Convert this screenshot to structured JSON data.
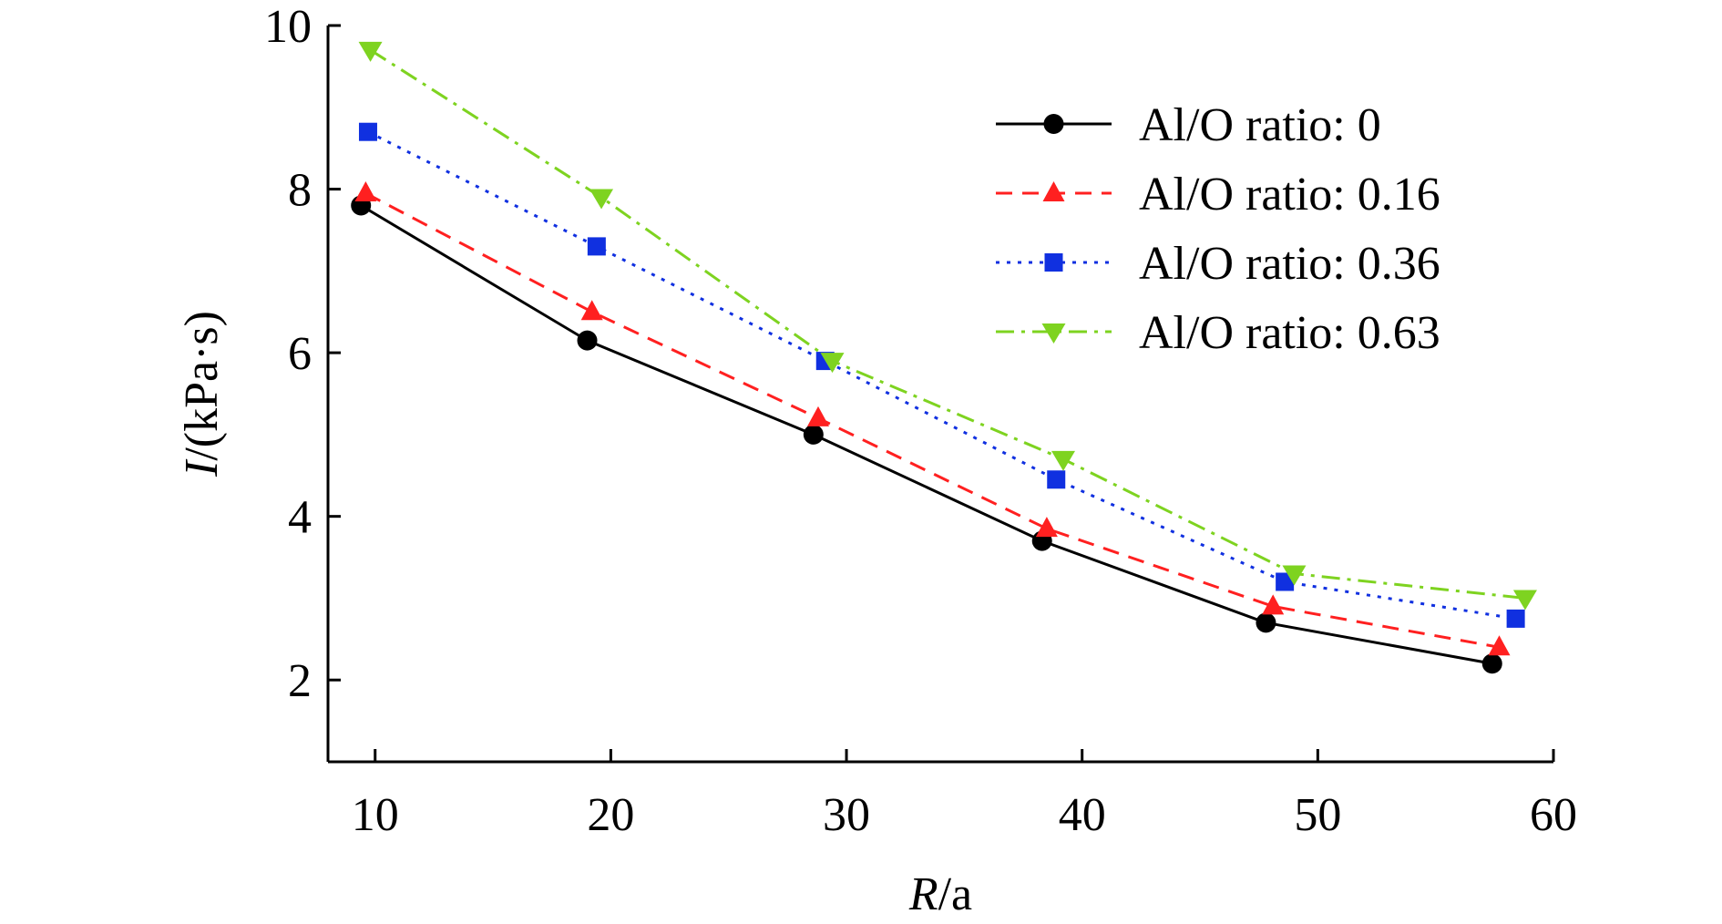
{
  "chart_data": {
    "type": "line",
    "title": "",
    "xlabel": {
      "var": "R",
      "unit": "/a"
    },
    "ylabel": {
      "var": "I",
      "unit": "/(kPa·s)"
    },
    "xlim": [
      8,
      60
    ],
    "ylim": [
      1,
      10
    ],
    "x_ticks": [
      10,
      20,
      30,
      40,
      50,
      60
    ],
    "y_ticks": [
      2,
      4,
      6,
      8,
      10
    ],
    "grid": false,
    "legend_position": "top-right",
    "series": [
      {
        "name": "Al/O ratio: 0",
        "color": "#000000",
        "line_style": "solid",
        "marker": "circle",
        "x": [
          9.4,
          19.0,
          28.6,
          38.3,
          47.8,
          57.4
        ],
        "y": [
          7.8,
          6.15,
          5.0,
          3.7,
          2.7,
          2.2
        ]
      },
      {
        "name": "Al/O ratio: 0.16",
        "color": "#ff2020",
        "line_style": "dashed",
        "marker": "triangle-up",
        "x": [
          9.6,
          19.2,
          28.8,
          38.5,
          48.1,
          57.7
        ],
        "y": [
          7.95,
          6.5,
          5.2,
          3.85,
          2.9,
          2.4
        ]
      },
      {
        "name": "Al/O ratio: 0.36",
        "color": "#1030e0",
        "line_style": "dotted",
        "marker": "square",
        "x": [
          9.7,
          19.4,
          29.1,
          38.9,
          48.6,
          58.4
        ],
        "y": [
          8.7,
          7.3,
          5.9,
          4.45,
          3.2,
          2.75
        ]
      },
      {
        "name": "Al/O ratio: 0.63",
        "color": "#7ed320",
        "line_style": "dashdot",
        "marker": "triangle-down",
        "x": [
          9.8,
          19.6,
          29.4,
          39.2,
          49.0,
          58.8
        ],
        "y": [
          9.7,
          7.9,
          5.9,
          4.7,
          3.3,
          3.0
        ]
      }
    ]
  }
}
